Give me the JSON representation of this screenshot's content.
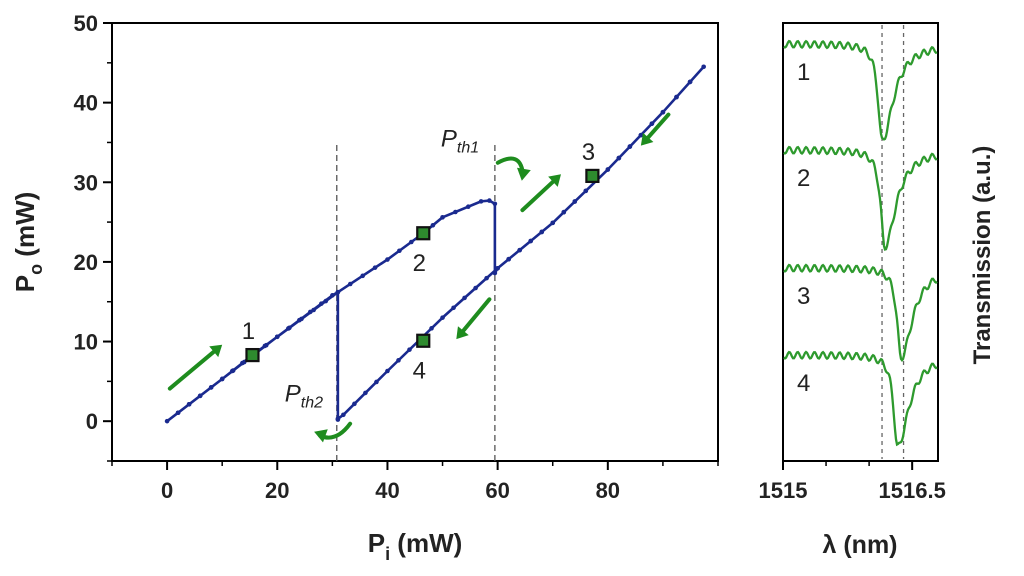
{
  "chart_data": [
    {
      "type": "line",
      "xlabel_main": "P",
      "xlabel_sub": "i",
      "xlabel_unit": " (mW)",
      "ylabel_main": "P",
      "ylabel_sub": "o",
      "ylabel_unit": " (mW)",
      "xlim": [
        -10,
        100
      ],
      "ylim": [
        -5,
        50
      ],
      "xticks": [
        0,
        20,
        40,
        60,
        80
      ],
      "yticks": [
        0,
        10,
        20,
        30,
        40,
        50
      ],
      "grid": false,
      "series": [
        {
          "color": "#1a2a8f",
          "x": [
            0,
            10,
            20,
            30,
            31,
            31,
            31,
            32,
            40,
            50,
            60,
            70,
            80,
            90,
            97.4,
            90,
            80,
            70,
            60,
            59.5,
            59.5,
            58.5,
            57,
            50,
            46.5,
            40,
            31,
            20,
            15.5,
            10,
            0
          ],
          "y": [
            0,
            5.3,
            10.6,
            15.8,
            16.2,
            0.2,
            0.3,
            0.8,
            6.3,
            13,
            19.2,
            24.9,
            31.6,
            38.8,
            44.5,
            38.8,
            31.6,
            24.9,
            19.2,
            18.6,
            27.3,
            27.7,
            27.6,
            25.6,
            23.6,
            20.3,
            16.2,
            10.6,
            8.3,
            5.3,
            0
          ]
        }
      ],
      "markers": [
        {
          "label": "1",
          "x": 15.5,
          "y": 8.3
        },
        {
          "label": "2",
          "x": 46.5,
          "y": 23.6
        },
        {
          "label": "3",
          "x": 77.2,
          "y": 30.8
        },
        {
          "label": "4",
          "x": 46.5,
          "y": 10.1
        }
      ],
      "vlines": [
        30.8,
        59.5
      ],
      "threshold_labels": [
        {
          "main": "P",
          "sub": "th1",
          "x": 59.5
        },
        {
          "main": "P",
          "sub": "th2",
          "x": 30.8
        }
      ],
      "arrow_color": "#1e8c1e"
    },
    {
      "type": "line",
      "xlabel": "λ (nm)",
      "ylabel": "Transmission (a.u.)",
      "xlim": [
        1515,
        1516.8
      ],
      "xticks": [
        "1515",
        "1516.5"
      ],
      "dip_a": 1516.15,
      "dip_b": 1516.4,
      "grid": false,
      "series": [
        {
          "name": "1",
          "color": "#2e9a2e",
          "dip": 1516.15
        },
        {
          "name": "2",
          "color": "#2e9a2e",
          "dip": 1516.18
        },
        {
          "name": "3",
          "color": "#2e9a2e",
          "dip": 1516.37
        },
        {
          "name": "4",
          "color": "#2e9a2e",
          "dip": 1516.33
        }
      ]
    }
  ]
}
